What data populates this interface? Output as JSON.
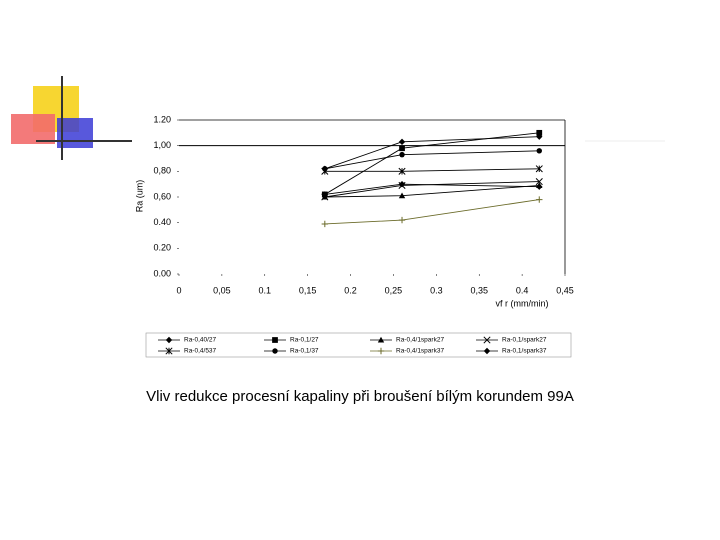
{
  "chart_data": {
    "type": "line",
    "ylabel": "Ra (um)",
    "xlabel": "vf r (mm/min)",
    "x": [
      0.17,
      0.26,
      0.42
    ],
    "xlim": [
      0,
      0.45
    ],
    "xticks": [
      0,
      {
        "value": 0.05,
        "label": "0,05"
      },
      0.1,
      {
        "value": 0.15,
        "label": "0,15"
      },
      0.2,
      {
        "value": 0.25,
        "label": "0,25"
      },
      0.3,
      {
        "value": 0.35,
        "label": "0,35"
      },
      0.4,
      {
        "value": 0.45,
        "label": "0,45"
      }
    ],
    "ylim": [
      0,
      1.2
    ],
    "yticks": [
      {
        "value": 0,
        "label": "0.00"
      },
      {
        "value": 0.2,
        "label": "0.20"
      },
      {
        "value": 0.4,
        "label": "0.40"
      },
      {
        "value": 0.6,
        "label": "0,60"
      },
      {
        "value": 0.8,
        "label": "0,80"
      },
      {
        "value": 1.0,
        "label": "1,00"
      },
      {
        "value": 1.2,
        "label": "1.20"
      }
    ],
    "reference_line": 1.0,
    "series": [
      {
        "name": "Ra-0,40/27",
        "color": "#000000",
        "marker": "diamond",
        "values": [
          0.82,
          1.03,
          1.07
        ]
      },
      {
        "name": "Ra-0,1/27",
        "color": "#000000",
        "marker": "square",
        "values": [
          0.62,
          0.98,
          1.1
        ]
      },
      {
        "name": "Ra-0,4/1spark27",
        "color": "#000000",
        "marker": "triangle",
        "values": [
          0.6,
          0.61,
          0.69
        ]
      },
      {
        "name": "Ra-0,1/spark27",
        "color": "#000000",
        "marker": "x",
        "values": [
          0.6,
          0.69,
          0.72
        ]
      },
      {
        "name": "Ra-0,4/537",
        "color": "#000000",
        "marker": "star",
        "values": [
          0.8,
          0.8,
          0.82
        ]
      },
      {
        "name": "Ra-0,1/37",
        "color": "#000000",
        "marker": "dot",
        "values": [
          0.82,
          0.93,
          0.96
        ]
      },
      {
        "name": "Ra-0,4/1spark37",
        "color": "#6b6b2a",
        "marker": "plus",
        "values": [
          0.39,
          0.42,
          0.58
        ]
      },
      {
        "name": "Ra-0,1/spark37",
        "color": "#000000",
        "marker": "diamond",
        "values": [
          0.62,
          0.7,
          0.68
        ]
      }
    ]
  },
  "caption": "Vliv redukce procesní kapaliny při broušení bílým korundem 99A"
}
